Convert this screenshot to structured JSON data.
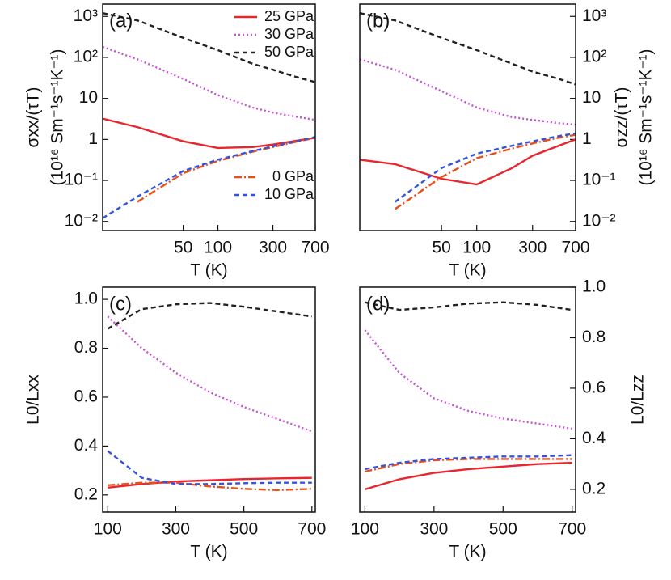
{
  "chart_data": [
    {
      "type": "line",
      "label": "(a)",
      "ylabel": "σxx/(τT)",
      "yunit": "(10¹⁶ Sm⁻¹s⁻¹K⁻¹)",
      "xlabel": "T (K)",
      "xlog": true,
      "ylog": true,
      "xlim": [
        10,
        700
      ],
      "ylim": [
        0.006,
        2000
      ],
      "yaxis_side": "left",
      "xticks": [
        50,
        100,
        300,
        700
      ],
      "yticks": [
        {
          "value": 0.01,
          "label": "10⁻²"
        },
        {
          "value": 0.1,
          "label": "10⁻¹"
        },
        1,
        10,
        {
          "value": 100,
          "label": "10²"
        },
        {
          "value": 1000,
          "label": "10³"
        }
      ],
      "x": [
        10,
        20,
        50,
        100,
        200,
        300,
        500,
        700
      ],
      "series": [
        {
          "name": "25 GPa",
          "color": "#e8262e",
          "style": "solid",
          "legend": "upper right",
          "values": [
            3.2,
            2.0,
            0.9,
            0.62,
            0.65,
            0.75,
            0.95,
            1.1
          ]
        },
        {
          "name": "30 GPa",
          "color": "#c94fd6",
          "style": "dotted",
          "legend": "upper right",
          "values": [
            180,
            90,
            30,
            12,
            6,
            4.5,
            3.5,
            3.0
          ]
        },
        {
          "name": "50 GPa",
          "color": "#222222",
          "style": "dashed",
          "legend": "upper right",
          "values": [
            1200,
            800,
            300,
            150,
            70,
            50,
            32,
            25
          ]
        },
        {
          "name": "0 GPa",
          "color": "#e8501a",
          "style": "dashdot",
          "legend": "lower right",
          "values": [
            null,
            0.03,
            0.15,
            0.3,
            0.5,
            0.65,
            0.9,
            1.1
          ]
        },
        {
          "name": "10 GPa",
          "color": "#3355dd",
          "style": "dashed",
          "legend": "lower right",
          "values": [
            0.012,
            0.04,
            0.17,
            0.32,
            0.52,
            0.68,
            0.92,
            1.15
          ]
        }
      ]
    },
    {
      "type": "line",
      "label": "(b)",
      "ylabel": "σzz/(τT)",
      "yunit": "(10¹⁶ Sm⁻¹s⁻¹K⁻¹)",
      "xlabel": "T (K)",
      "xlog": true,
      "ylog": true,
      "xlim": [
        10,
        700
      ],
      "ylim": [
        0.006,
        2000
      ],
      "yaxis_side": "right",
      "xticks": [
        50,
        100,
        300,
        700
      ],
      "yticks": [
        {
          "value": 0.01,
          "label": "10⁻²"
        },
        {
          "value": 0.1,
          "label": "10⁻¹"
        },
        1,
        10,
        {
          "value": 100,
          "label": "10²"
        },
        {
          "value": 1000,
          "label": "10³"
        }
      ],
      "x": [
        10,
        20,
        50,
        100,
        200,
        300,
        500,
        700
      ],
      "series": [
        {
          "color": "#e8262e",
          "style": "solid",
          "values": [
            0.32,
            0.25,
            0.11,
            0.08,
            0.2,
            0.4,
            0.7,
            1.0
          ]
        },
        {
          "color": "#c94fd6",
          "style": "dotted",
          "values": [
            90,
            50,
            15,
            6,
            3.5,
            3,
            2.5,
            2.3
          ]
        },
        {
          "color": "#222222",
          "style": "dashed",
          "values": [
            1200,
            800,
            300,
            150,
            70,
            45,
            30,
            22
          ]
        },
        {
          "color": "#e8501a",
          "style": "dashdot",
          "values": [
            null,
            0.02,
            0.12,
            0.35,
            0.6,
            0.8,
            1.1,
            1.3
          ]
        },
        {
          "color": "#3355dd",
          "style": "dashed",
          "values": [
            null,
            0.03,
            0.2,
            0.45,
            0.7,
            0.9,
            1.2,
            1.4
          ]
        }
      ]
    },
    {
      "type": "line",
      "label": "(c)",
      "ylabel": "L0/Lxx",
      "xlabel": "T (K)",
      "xlim": [
        85,
        710
      ],
      "ylim": [
        0.13,
        1.05
      ],
      "yaxis_side": "left",
      "xticks": [
        100,
        300,
        500,
        700
      ],
      "yticks": [
        0.2,
        0.4,
        0.6,
        0.8,
        {
          "value": 1.0,
          "label": "1.0"
        }
      ],
      "x": [
        100,
        200,
        300,
        400,
        500,
        600,
        700
      ],
      "series": [
        {
          "color": "#e8262e",
          "style": "solid",
          "values": [
            0.23,
            0.245,
            0.255,
            0.26,
            0.265,
            0.268,
            0.27
          ]
        },
        {
          "color": "#c94fd6",
          "style": "dotted",
          "values": [
            0.93,
            0.8,
            0.7,
            0.62,
            0.56,
            0.51,
            0.46
          ]
        },
        {
          "color": "#222222",
          "style": "dashed",
          "values": [
            0.88,
            0.96,
            0.98,
            0.985,
            0.97,
            0.95,
            0.93
          ]
        },
        {
          "color": "#e8501a",
          "style": "dashdot",
          "values": [
            0.24,
            0.25,
            0.25,
            0.235,
            0.225,
            0.22,
            0.225
          ]
        },
        {
          "color": "#3355dd",
          "style": "dashed",
          "values": [
            0.38,
            0.27,
            0.245,
            0.245,
            0.248,
            0.25,
            0.25
          ]
        }
      ]
    },
    {
      "type": "line",
      "label": "(d)",
      "ylabel": "L0/Lzz",
      "xlabel": "T (K)",
      "xlim": [
        85,
        710
      ],
      "ylim": [
        0.11,
        1.0
      ],
      "yaxis_side": "right",
      "xticks": [
        100,
        300,
        500,
        700
      ],
      "yticks": [
        0.2,
        0.4,
        0.6,
        0.8,
        {
          "value": 1.0,
          "label": "1.0"
        }
      ],
      "x": [
        100,
        200,
        300,
        400,
        500,
        600,
        700
      ],
      "series": [
        {
          "color": "#e8262e",
          "style": "solid",
          "values": [
            0.2,
            0.24,
            0.265,
            0.28,
            0.29,
            0.3,
            0.305
          ]
        },
        {
          "color": "#c94fd6",
          "style": "dotted",
          "values": [
            0.83,
            0.66,
            0.56,
            0.51,
            0.48,
            0.46,
            0.44
          ]
        },
        {
          "color": "#222222",
          "style": "dashed",
          "values": [
            0.94,
            0.91,
            0.92,
            0.935,
            0.94,
            0.93,
            0.91
          ]
        },
        {
          "color": "#e8501a",
          "style": "dashdot",
          "values": [
            0.27,
            0.3,
            0.315,
            0.32,
            0.32,
            0.32,
            0.32
          ]
        },
        {
          "color": "#3355dd",
          "style": "dashed",
          "values": [
            0.28,
            0.305,
            0.32,
            0.325,
            0.33,
            0.33,
            0.335
          ]
        }
      ]
    }
  ]
}
